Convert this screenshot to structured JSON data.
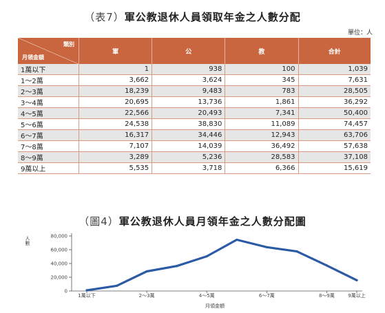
{
  "table": {
    "title_prefix": "（表7）",
    "title_main": "軍公教退休人員領取年金之人數分配",
    "unit": "單位：人",
    "corner_top": "類別",
    "corner_bottom": "月領金額",
    "headers": [
      "軍",
      "公",
      "教",
      "合計"
    ],
    "rows": [
      {
        "label": "1萬以下",
        "values": [
          "1",
          "938",
          "100",
          "1,039"
        ]
      },
      {
        "label": "1～2萬",
        "values": [
          "3,662",
          "3,624",
          "345",
          "7,631"
        ]
      },
      {
        "label": "2～3萬",
        "values": [
          "18,239",
          "9,483",
          "783",
          "28,505"
        ]
      },
      {
        "label": "3～4萬",
        "values": [
          "20,695",
          "13,736",
          "1,861",
          "36,292"
        ]
      },
      {
        "label": "4～5萬",
        "values": [
          "22,566",
          "20,493",
          "7,341",
          "50,400"
        ]
      },
      {
        "label": "5～6萬",
        "values": [
          "24,538",
          "38,830",
          "11,089",
          "74,457"
        ]
      },
      {
        "label": "6～7萬",
        "values": [
          "16,317",
          "34,446",
          "12,943",
          "63,706"
        ]
      },
      {
        "label": "7～8萬",
        "values": [
          "7,107",
          "14,039",
          "36,492",
          "57,638"
        ]
      },
      {
        "label": "8～9萬",
        "values": [
          "3,289",
          "5,236",
          "28,583",
          "37,108"
        ]
      },
      {
        "label": "9萬以上",
        "values": [
          "5,535",
          "3,718",
          "6,366",
          "15,619"
        ]
      }
    ]
  },
  "chart_data": {
    "type": "line",
    "title_prefix": "（圖4）",
    "title": "軍公教退休人員月領年金之人數分配圖",
    "xlabel": "月領金額",
    "ylabel": "人數",
    "categories": [
      "1萬以下",
      "1～2萬",
      "2～3萬",
      "3～4萬",
      "4～5萬",
      "5～6萬",
      "6～7萬",
      "7～8萬",
      "8～9萬",
      "9萬以上"
    ],
    "x_tick_labels": [
      "1萬以下",
      "2～3萬",
      "4～5萬",
      "6～7萬",
      "8～9萬",
      "9萬以上"
    ],
    "x_tick_indices": [
      0,
      2,
      4,
      6,
      8,
      9
    ],
    "yticks": [
      0,
      20000,
      40000,
      60000,
      80000
    ],
    "ytick_labels": [
      "0",
      "20,000",
      "40,000",
      "60,000",
      "80,000"
    ],
    "ylim": [
      0,
      80000
    ],
    "grid": false,
    "line_color": "#2b5aa6",
    "series": [
      {
        "values": [
          1039,
          7631,
          28505,
          36292,
          50400,
          74457,
          63706,
          57638,
          37108,
          15619
        ]
      }
    ]
  }
}
